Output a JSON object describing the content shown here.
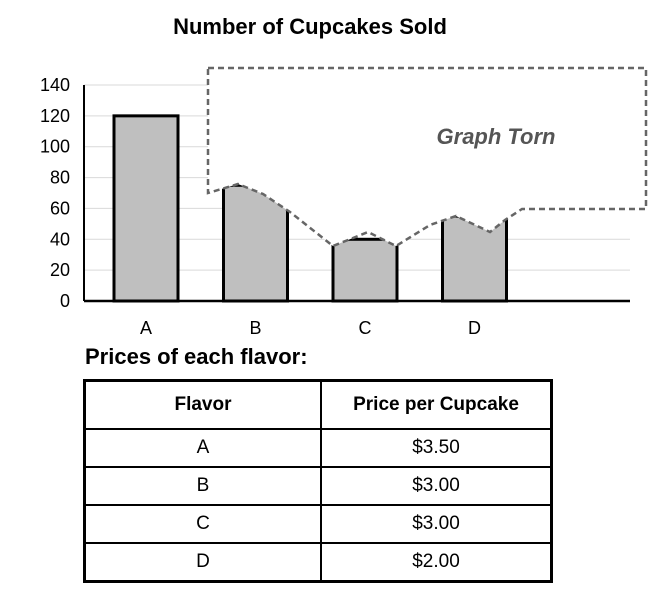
{
  "chart_data": {
    "type": "bar",
    "title": "Number of Cupcakes Sold",
    "categories": [
      "A",
      "B",
      "C",
      "D"
    ],
    "values": [
      120,
      null,
      null,
      null
    ],
    "visible_partial_tops": [
      null,
      75,
      40,
      55
    ],
    "ylim": [
      0,
      140
    ],
    "yticks": [
      0,
      20,
      40,
      60,
      80,
      100,
      120,
      140
    ],
    "xlabel": "",
    "ylabel": "",
    "grid": true,
    "annotation": "Graph Torn",
    "colors": {
      "bar_fill": "#bfbfbf",
      "bar_stroke": "#000000",
      "grid": "#d9d9d9",
      "torn": "#666666"
    }
  },
  "table": {
    "caption": "Prices of each flavor:",
    "headers": [
      "Flavor",
      "Price per Cupcake"
    ],
    "rows": [
      [
        "A",
        "$3.50"
      ],
      [
        "B",
        "$3.00"
      ],
      [
        "C",
        "$3.00"
      ],
      [
        "D",
        "$2.00"
      ]
    ]
  }
}
